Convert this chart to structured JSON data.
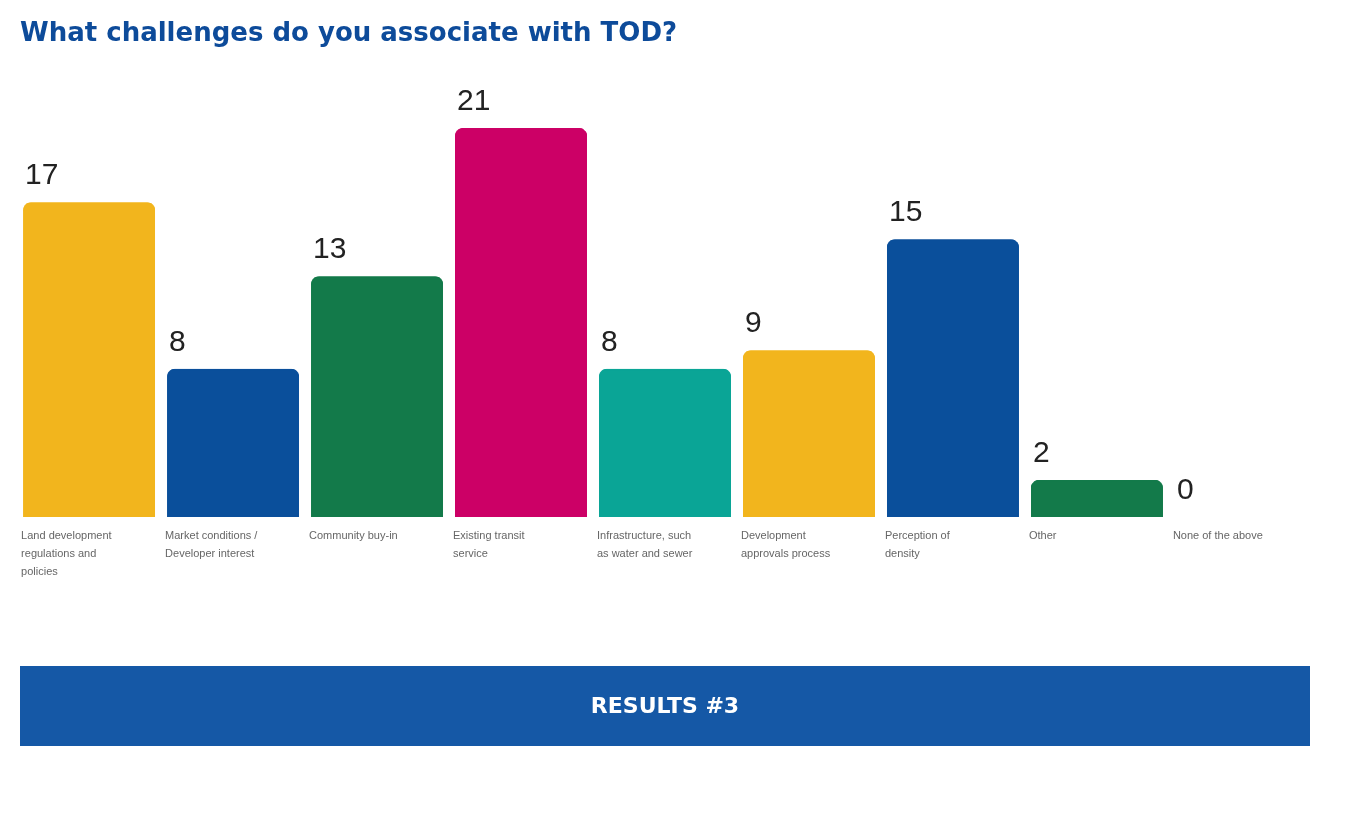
{
  "chart_data": {
    "type": "bar",
    "title": "What challenges do you associate with TOD?",
    "categories": [
      "Land development regulations and policies",
      "Market conditions / Developer interest",
      "Community buy-in",
      "Existing transit service",
      "Infrastructure, such as water and sewer",
      "Development approvals process",
      "Perception of density",
      "Other",
      "None of the above"
    ],
    "values": [
      17,
      8,
      13,
      21,
      8,
      9,
      15,
      2,
      0
    ],
    "colors": [
      "#f2b51d",
      "#0a4f9b",
      "#137a4a",
      "#cc0066",
      "#0aa596",
      "#f2b51d",
      "#0a4f9b",
      "#137a4a",
      "#cc0066"
    ],
    "data_labels": true,
    "annotations": [
      "RESULTS #3"
    ]
  }
}
